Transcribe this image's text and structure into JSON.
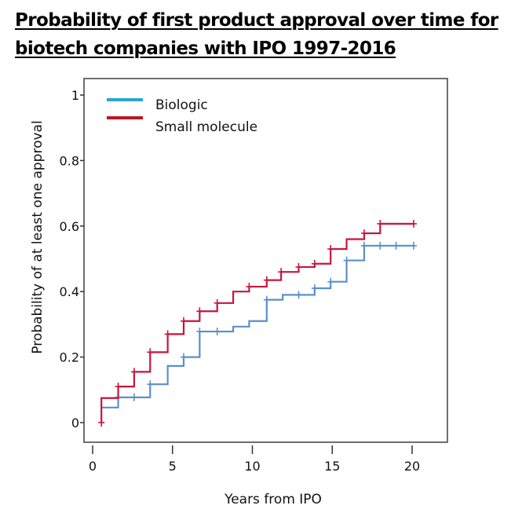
{
  "chart_data": {
    "type": "line",
    "subtype": "step (Kaplan-Meier style)",
    "title_line1": "Probability of first product approval over time for",
    "title_line2": "biotech companies with IPO 1997-2016",
    "xlabel": "Years from IPO",
    "ylabel": "Probability of at least one approval",
    "xlim": [
      0,
      22
    ],
    "ylim": [
      -0.06,
      1.05
    ],
    "x_ticks": [
      0,
      5,
      10,
      15,
      20
    ],
    "x_tick_labels": [
      "0",
      "5",
      "10",
      "15",
      "20"
    ],
    "y_ticks": [
      0,
      0.2,
      0.4,
      0.6,
      0.8,
      1
    ],
    "y_tick_labels": [
      "0",
      "0.2",
      "0.4",
      "0.6",
      "0.8",
      "1"
    ],
    "grid": false,
    "legend_position": "top-left",
    "series": [
      {
        "name": "Biologic",
        "color": "#5b8fc9",
        "legend_color": "#2aa6d0",
        "steps": [
          [
            0.55,
            0.046
          ],
          [
            1.6,
            0.077
          ],
          [
            3.6,
            0.117
          ],
          [
            4.7,
            0.173
          ],
          [
            5.7,
            0.2
          ],
          [
            6.7,
            0.278
          ],
          [
            8.8,
            0.293
          ],
          [
            9.8,
            0.31
          ],
          [
            10.9,
            0.375
          ],
          [
            11.9,
            0.39
          ],
          [
            13.9,
            0.41
          ],
          [
            14.9,
            0.43
          ],
          [
            15.9,
            0.495
          ],
          [
            17.0,
            0.54
          ],
          [
            20.1,
            0.54
          ]
        ],
        "censor_marks": [
          [
            1.6,
            0.077
          ],
          [
            2.6,
            0.077
          ],
          [
            3.6,
            0.117
          ],
          [
            5.7,
            0.2
          ],
          [
            6.7,
            0.278
          ],
          [
            7.8,
            0.278
          ],
          [
            10.9,
            0.375
          ],
          [
            12.9,
            0.39
          ],
          [
            13.9,
            0.41
          ],
          [
            14.9,
            0.43
          ],
          [
            15.9,
            0.495
          ],
          [
            17.0,
            0.54
          ],
          [
            18.0,
            0.54
          ],
          [
            19.0,
            0.54
          ],
          [
            20.1,
            0.54
          ]
        ]
      },
      {
        "name": "Small molecule",
        "color": "#c8143c",
        "legend_color": "#c0151f",
        "start": [
          0.55,
          0.0
        ],
        "steps": [
          [
            0.55,
            0.075
          ],
          [
            1.6,
            0.11
          ],
          [
            2.6,
            0.155
          ],
          [
            3.6,
            0.215
          ],
          [
            4.7,
            0.27
          ],
          [
            5.7,
            0.31
          ],
          [
            6.7,
            0.34
          ],
          [
            7.8,
            0.365
          ],
          [
            8.8,
            0.4
          ],
          [
            9.8,
            0.415
          ],
          [
            10.9,
            0.435
          ],
          [
            11.8,
            0.46
          ],
          [
            12.9,
            0.475
          ],
          [
            13.9,
            0.485
          ],
          [
            14.9,
            0.53
          ],
          [
            15.9,
            0.56
          ],
          [
            17.0,
            0.578
          ],
          [
            18.0,
            0.607
          ],
          [
            20.1,
            0.607
          ]
        ],
        "censor_marks": [
          [
            0.55,
            0.0
          ],
          [
            1.6,
            0.11
          ],
          [
            2.6,
            0.155
          ],
          [
            3.6,
            0.215
          ],
          [
            4.7,
            0.27
          ],
          [
            5.7,
            0.31
          ],
          [
            6.7,
            0.34
          ],
          [
            7.8,
            0.365
          ],
          [
            9.8,
            0.415
          ],
          [
            10.9,
            0.435
          ],
          [
            11.8,
            0.46
          ],
          [
            12.9,
            0.475
          ],
          [
            13.9,
            0.485
          ],
          [
            14.9,
            0.53
          ],
          [
            17.0,
            0.578
          ],
          [
            18.0,
            0.607
          ],
          [
            20.1,
            0.607
          ]
        ]
      }
    ]
  }
}
